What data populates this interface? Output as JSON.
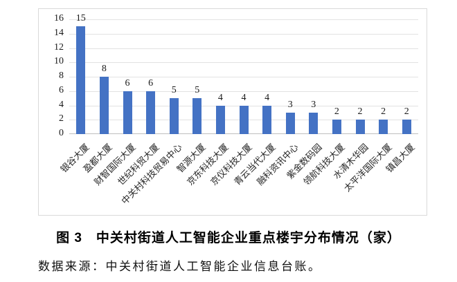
{
  "figure": {
    "caption": "图 3　中关村街道人工智能企业重点楼宇分布情况（家）",
    "source": "数据来源：中关村街道人工智能企业信息台账。"
  },
  "chart_data": {
    "type": "bar",
    "title": "",
    "xlabel": "",
    "ylabel": "",
    "categories": [
      "银谷大厦",
      "盈都大厦",
      "财智国际大厦",
      "世纪科贸大厦",
      "中关村科技贸易中心",
      "智源大厦",
      "京东科技大厦",
      "京仪科技大厦",
      "青云当代大厦",
      "融科资讯中心",
      "紫金数码园",
      "领航科技大厦",
      "水清木华园",
      "太平洋国际大厦",
      "镇昌大厦"
    ],
    "values": [
      15,
      8,
      6,
      6,
      5,
      5,
      4,
      4,
      4,
      3,
      3,
      2,
      2,
      2,
      2
    ],
    "yticks": [
      0,
      2,
      4,
      6,
      8,
      10,
      12,
      14,
      16
    ],
    "ylim": [
      0,
      16
    ],
    "grid": true,
    "legend": "none",
    "data_labels": true,
    "bar_color": "#4472C4",
    "gridline_color": "#E2E2E2",
    "axis_line_color": "#BFBFBF",
    "border_color": "#D9D9D9",
    "label_rotation_deg": 45
  }
}
